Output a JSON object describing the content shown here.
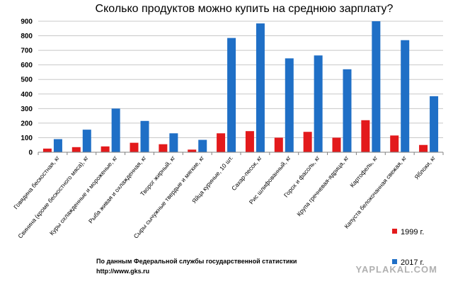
{
  "chart_data": {
    "type": "bar",
    "title": "Сколько продуктов можно купить на среднюю зарплату?",
    "categories": [
      "Говядина бескостная, кг",
      "Свинина (кроме бескостного мяса), кг",
      "Куры охлажденные и мороженые, кг",
      "Рыба живая и охлажденная, кг",
      "Творог жирный, кг",
      "Сыры сычужные твердые и мягкие, кг",
      "Яйца куриные, 10 шт.",
      "Сахар-песок, кг",
      "Рис шлифованный, кг",
      "Горох и фасоль, кг",
      "Крупа гречневая-ядрица, кг",
      "Картофель, кг",
      "Капуста белокочанная свежая, кг",
      "Яблоки, кг"
    ],
    "series": [
      {
        "name": "1999 г.",
        "color": "#e31a1c",
        "values": [
          25,
          35,
          40,
          65,
          55,
          18,
          130,
          145,
          100,
          140,
          100,
          220,
          115,
          50
        ]
      },
      {
        "name": "2017 г.",
        "color": "#1f6fc6",
        "values": [
          90,
          155,
          300,
          215,
          130,
          85,
          785,
          885,
          645,
          665,
          570,
          900,
          770,
          385
        ]
      }
    ],
    "ylim": [
      0,
      900
    ],
    "yticks": [
      0,
      100,
      200,
      300,
      400,
      500,
      600,
      700,
      800,
      900
    ],
    "grid": true,
    "legend_position": "bottom-right"
  },
  "footer": {
    "source_line1": "По данным Федеральной службы государственной статистики",
    "source_line2": "http://www.gks.ru",
    "watermark": "YAPLAKAL.COM"
  }
}
